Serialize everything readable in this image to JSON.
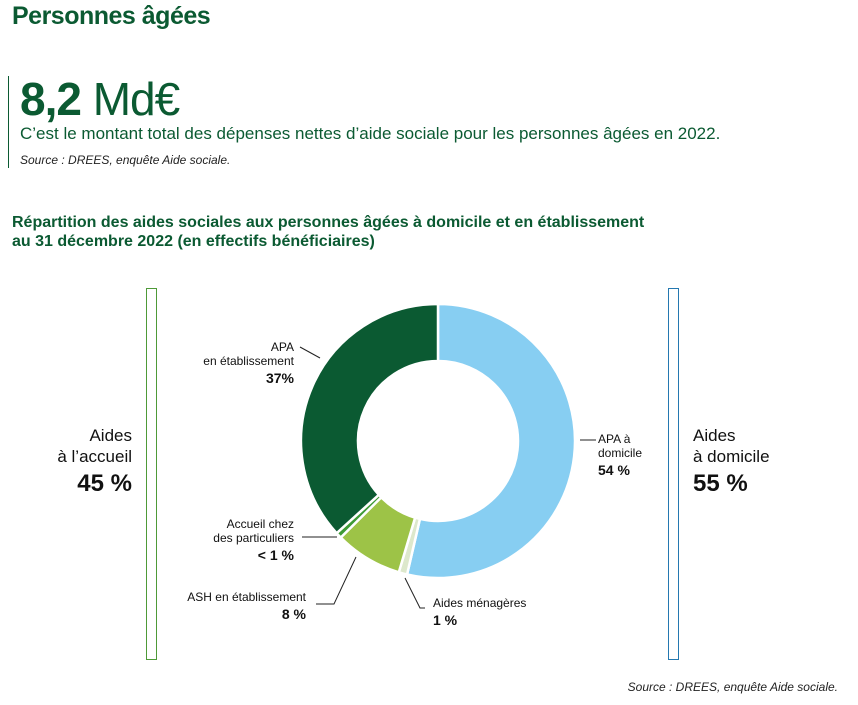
{
  "header": {
    "title": "Personnes âgées"
  },
  "kpi": {
    "value": "8,2",
    "unit": "Md€",
    "description": "C’est le montant total des dépenses nettes d’aide sociale pour les personnes âgées en 2022.",
    "source": "Source : DREES, enquête Aide sociale."
  },
  "chart_data": {
    "type": "pie",
    "donut": true,
    "title": "Répartition des aides sociales aux personnes âgées à domicile et en établissement au 31 décembre 2022 (en effectifs bénéficiaires)",
    "title_line1": "Répartition des aides sociales aux personnes âgées à domicile et en établissement",
    "title_line2": "au 31 décembre 2022 (en effectifs bénéficiaires)",
    "slices": [
      {
        "label_l1": "APA à",
        "label_l2": "domicile",
        "value": 54,
        "value_label": "54 %",
        "color": "#87cef2"
      },
      {
        "label_l1": "Aides ménagères",
        "label_l2": "",
        "value": 1,
        "value_label": "1 %",
        "color": "#dde8cc"
      },
      {
        "label_l1": "ASH en établissement",
        "label_l2": "",
        "value": 8,
        "value_label": "8 %",
        "color": "#9dc347"
      },
      {
        "label_l1": "Accueil chez",
        "label_l2": "des particuliers",
        "value": 0.7,
        "value_label": "< 1 %",
        "color": "#3e9a35"
      },
      {
        "label_l1": "APA",
        "label_l2": "en établissement",
        "value": 37,
        "value_label": "37%",
        "color": "#0b5a32"
      }
    ],
    "groups": [
      {
        "label_l1": "Aides",
        "label_l2": "à l’accueil",
        "value_label": "45 %",
        "color": "#4e9a38"
      },
      {
        "label_l1": "Aides",
        "label_l2": "à domicile",
        "value_label": "55 %",
        "color": "#2478b0"
      }
    ],
    "source": "Source : DREES, enquête Aide sociale."
  }
}
